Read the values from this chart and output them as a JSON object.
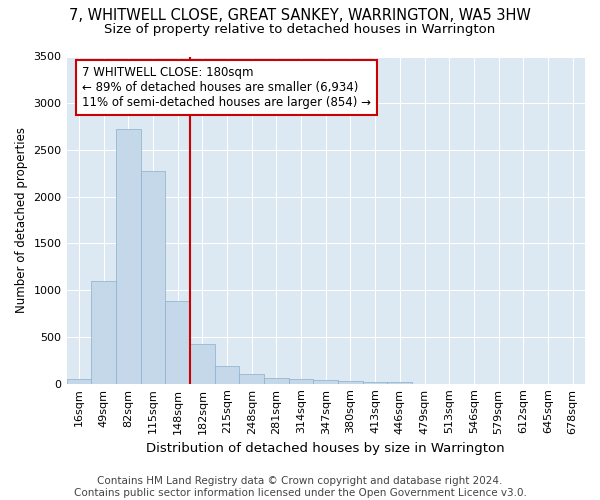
{
  "title": "7, WHITWELL CLOSE, GREAT SANKEY, WARRINGTON, WA5 3HW",
  "subtitle": "Size of property relative to detached houses in Warrington",
  "xlabel": "Distribution of detached houses by size in Warrington",
  "ylabel": "Number of detached properties",
  "bar_color": "#c5d8ea",
  "bar_edge_color": "#8ab0cc",
  "background_color": "#dce8f2",
  "grid_color": "#ffffff",
  "vline_color": "#cc0000",
  "categories": [
    "16sqm",
    "49sqm",
    "82sqm",
    "115sqm",
    "148sqm",
    "182sqm",
    "215sqm",
    "248sqm",
    "281sqm",
    "314sqm",
    "347sqm",
    "380sqm",
    "413sqm",
    "446sqm",
    "479sqm",
    "513sqm",
    "546sqm",
    "579sqm",
    "612sqm",
    "645sqm",
    "678sqm"
  ],
  "values": [
    50,
    1100,
    2720,
    2280,
    880,
    425,
    185,
    100,
    65,
    50,
    40,
    30,
    20,
    15,
    0,
    0,
    0,
    0,
    0,
    0,
    0
  ],
  "ylim": [
    0,
    3500
  ],
  "yticks": [
    0,
    500,
    1000,
    1500,
    2000,
    2500,
    3000,
    3500
  ],
  "vline_index": 5.0,
  "annotation_line1": "7 WHITWELL CLOSE: 180sqm",
  "annotation_line2": "← 89% of detached houses are smaller (6,934)",
  "annotation_line3": "11% of semi-detached houses are larger (854) →",
  "footer_text": "Contains HM Land Registry data © Crown copyright and database right 2024.\nContains public sector information licensed under the Open Government Licence v3.0.",
  "title_fontsize": 10.5,
  "subtitle_fontsize": 9.5,
  "annotation_fontsize": 8.5,
  "xlabel_fontsize": 9.5,
  "ylabel_fontsize": 8.5,
  "footer_fontsize": 7.5,
  "tick_fontsize": 8
}
